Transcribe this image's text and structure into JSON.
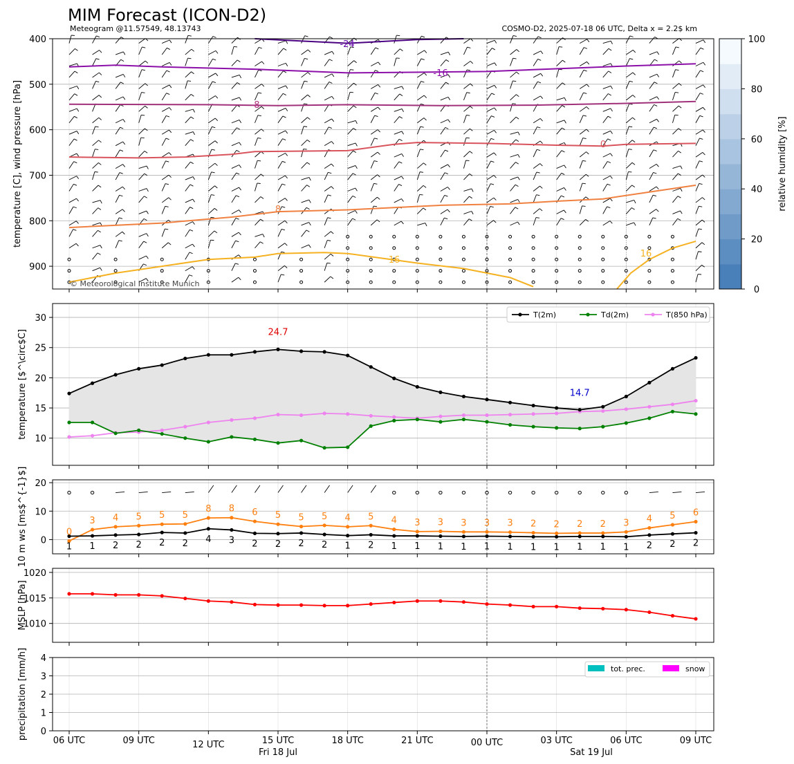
{
  "header": {
    "title": "MIM Forecast (ICON-D2)",
    "subtitle_left": "Meteogram @11.57549, 48.13743",
    "subtitle_right": "COSMO-D2, 2025-07-18 06 UTC, Delta x = 2.2$ km",
    "copyright": "© Meteorological Institute Munich"
  },
  "colors": {
    "t2m": "#000000",
    "td2m": "#008000",
    "t850": "#ee82ee",
    "gust": "#ff7f0e",
    "mslp": "#ff0000",
    "prec": "#00bfbf",
    "snow": "#ff00ff"
  },
  "chart_data": [
    {
      "type": "contour",
      "name": "upper-air",
      "ylabel": "temperature [C], wind pressure [hPa]",
      "ylim": [
        950,
        400
      ],
      "yticks": [
        400,
        500,
        600,
        700,
        800,
        900
      ],
      "colorbar": {
        "label": "relative humidity [%]",
        "range": [
          0,
          100
        ],
        "ticks": [
          0,
          20,
          40,
          60,
          80,
          100
        ]
      },
      "isotherm_labels": [
        "-24",
        "-16",
        "-8",
        "0",
        "8",
        "16",
        "16"
      ],
      "isotherms": [
        {
          "label": "-24",
          "color": "#4b0082",
          "points": [
            [
              8,
              400
            ],
            [
              12,
              410
            ],
            [
              15,
              402
            ],
            [
              17,
              400
            ]
          ]
        },
        {
          "label": "-16",
          "color": "#8b0fa8",
          "points": [
            [
              0,
              462
            ],
            [
              2,
              458
            ],
            [
              4,
              462
            ],
            [
              8,
              467
            ],
            [
              12,
              475
            ],
            [
              18,
              472
            ],
            [
              20,
              468
            ],
            [
              24,
              460
            ],
            [
              27,
              455
            ]
          ]
        },
        {
          "label": "-8",
          "color": "#a0307a",
          "points": [
            [
              0,
              544
            ],
            [
              6,
              545
            ],
            [
              9,
              547
            ],
            [
              12,
              545
            ],
            [
              16,
              547
            ],
            [
              20,
              546
            ],
            [
              24,
              542
            ],
            [
              27,
              538
            ]
          ]
        },
        {
          "label": "0",
          "color": "#d9535c",
          "points": [
            [
              0,
              660
            ],
            [
              3,
              662
            ],
            [
              5,
              660
            ],
            [
              7,
              654
            ],
            [
              8,
              648
            ],
            [
              12,
              646
            ],
            [
              14,
              632
            ],
            [
              15,
              628
            ],
            [
              18,
              630
            ],
            [
              21,
              634
            ],
            [
              23,
              636
            ],
            [
              24,
              632
            ],
            [
              27,
              630
            ]
          ]
        },
        {
          "label": "8",
          "color": "#f08040",
          "points": [
            [
              0,
              815
            ],
            [
              4,
              805
            ],
            [
              7,
              792
            ],
            [
              9,
              780
            ],
            [
              12,
              776
            ],
            [
              16,
              766
            ],
            [
              19,
              763
            ],
            [
              21,
              757
            ],
            [
              23,
              752
            ],
            [
              25,
              737
            ],
            [
              27,
              722
            ]
          ]
        },
        {
          "label": "16",
          "color": "#f5b120",
          "points": [
            [
              0,
              935
            ],
            [
              2,
              915
            ],
            [
              4,
              900
            ],
            [
              6,
              885
            ],
            [
              8,
              880
            ],
            [
              9,
              872
            ],
            [
              11,
              870
            ],
            [
              12,
              872
            ],
            [
              15,
              893
            ],
            [
              17,
              905
            ],
            [
              19,
              925
            ],
            [
              20,
              945
            ]
          ]
        },
        {
          "label": "16",
          "color": "#f5b120",
          "points": [
            [
              23.6,
              950
            ],
            [
              24.2,
              915
            ],
            [
              25,
              885
            ],
            [
              26,
              860
            ],
            [
              27,
              845
            ]
          ]
        }
      ]
    },
    {
      "type": "line",
      "name": "temperature",
      "ylabel": "temperature [$^\\circ$C]",
      "ylim": [
        5.5,
        32.3
      ],
      "yticks": [
        10,
        15,
        20,
        25,
        30
      ],
      "max_label": "24.7",
      "min_label": "14.7",
      "series": [
        {
          "name": "T(2m)",
          "values": [
            17.4,
            19.1,
            20.5,
            21.5,
            22.1,
            23.2,
            23.8,
            23.8,
            24.3,
            24.7,
            24.4,
            24.3,
            23.7,
            21.8,
            19.9,
            18.5,
            17.6,
            16.9,
            16.4,
            15.9,
            15.4,
            15.0,
            14.7,
            15.2,
            16.9,
            19.2,
            21.5,
            23.3
          ]
        },
        {
          "name": "Td(2m)",
          "values": [
            12.6,
            12.6,
            10.8,
            11.3,
            10.7,
            10.0,
            9.4,
            10.2,
            9.8,
            9.2,
            9.6,
            8.4,
            8.5,
            12.0,
            12.9,
            13.1,
            12.7,
            13.1,
            12.7,
            12.2,
            11.9,
            11.7,
            11.6,
            11.9,
            12.5,
            13.3,
            14.4,
            14.0
          ]
        },
        {
          "name": "T(850 hPa)",
          "values": [
            10.2,
            10.4,
            10.9,
            11.0,
            11.3,
            11.9,
            12.6,
            13.0,
            13.3,
            13.9,
            13.8,
            14.1,
            14.0,
            13.7,
            13.5,
            13.3,
            13.6,
            13.8,
            13.8,
            13.9,
            14.0,
            14.1,
            14.4,
            14.5,
            14.8,
            15.2,
            15.6,
            16.2
          ]
        }
      ]
    },
    {
      "type": "line",
      "name": "wind",
      "ylabel": "10 m ws [ms$^{-1}$]",
      "ylim": [
        -5,
        21
      ],
      "yticks": [
        0,
        10,
        20
      ],
      "series": [
        {
          "name": "ws",
          "values": [
            1.2,
            1.3,
            1.6,
            1.8,
            2.5,
            2.3,
            3.8,
            3.4,
            2.2,
            2.1,
            2.3,
            1.8,
            1.4,
            1.7,
            1.3,
            1.3,
            1.2,
            1.1,
            1.2,
            1.1,
            1.0,
            1.0,
            1.1,
            1.1,
            1.0,
            1.6,
            2.0,
            2.4
          ]
        },
        {
          "name": "gust",
          "values": [
            -0.5,
            3.5,
            4.5,
            4.9,
            5.4,
            5.5,
            7.6,
            7.7,
            6.4,
            5.4,
            4.6,
            5.0,
            4.5,
            4.9,
            3.6,
            2.8,
            2.9,
            2.7,
            2.7,
            2.6,
            2.4,
            2.2,
            2.3,
            2.3,
            2.7,
            4.1,
            5.2,
            6.3
          ]
        }
      ],
      "ws_labels": [
        "1",
        "1",
        "2",
        "2",
        "2",
        "2",
        "4",
        "3",
        "2",
        "2",
        "2",
        "2",
        "1",
        "2",
        "1",
        "1",
        "1",
        "1",
        "1",
        "1",
        "1",
        "1",
        "1",
        "1",
        "1",
        "2",
        "2",
        "2"
      ],
      "gust_labels": [
        "0",
        "3",
        "4",
        "5",
        "5",
        "5",
        "8",
        "8",
        "6",
        "5",
        "5",
        "5",
        "4",
        "5",
        "4",
        "3",
        "3",
        "3",
        "3",
        "3",
        "2",
        "2",
        "2",
        "2",
        "3",
        "4",
        "5",
        "6"
      ]
    },
    {
      "type": "line",
      "name": "pressure",
      "ylabel": "MSLP [hPa]",
      "ylim": [
        1006.3,
        1020.8
      ],
      "yticks": [
        1010,
        1015,
        1020
      ],
      "series": [
        {
          "name": "MSLP",
          "values": [
            1015.8,
            1015.8,
            1015.6,
            1015.6,
            1015.4,
            1014.9,
            1014.4,
            1014.2,
            1013.7,
            1013.6,
            1013.6,
            1013.5,
            1013.5,
            1013.8,
            1014.1,
            1014.4,
            1014.4,
            1014.2,
            1013.8,
            1013.6,
            1013.3,
            1013.3,
            1013.0,
            1012.9,
            1012.7,
            1012.2,
            1011.5,
            1010.9
          ]
        }
      ]
    },
    {
      "type": "bar",
      "name": "precipitation",
      "ylabel": "precipitation [mm/h]",
      "ylim": [
        0,
        4
      ],
      "yticks": [
        0,
        1,
        2,
        3,
        4
      ],
      "legend": [
        "tot. prec.",
        "snow"
      ],
      "series": [
        {
          "name": "tot. prec.",
          "values": [
            0,
            0,
            0,
            0,
            0,
            0,
            0,
            0,
            0,
            0,
            0,
            0,
            0,
            0,
            0,
            0,
            0,
            0,
            0,
            0,
            0,
            0,
            0,
            0,
            0,
            0,
            0,
            0
          ]
        },
        {
          "name": "snow",
          "values": [
            0,
            0,
            0,
            0,
            0,
            0,
            0,
            0,
            0,
            0,
            0,
            0,
            0,
            0,
            0,
            0,
            0,
            0,
            0,
            0,
            0,
            0,
            0,
            0,
            0,
            0,
            0,
            0
          ]
        }
      ]
    }
  ],
  "x_axis": {
    "tick_labels": [
      "06 UTC",
      "09 UTC",
      "12 UTC",
      "15 UTC",
      "18 UTC",
      "21 UTC",
      "00 UTC",
      "03 UTC",
      "06 UTC",
      "09 UTC"
    ],
    "tick_hours": [
      0,
      3,
      6,
      9,
      12,
      15,
      18,
      21,
      24,
      27
    ],
    "day_labels": [
      "Fri 18 Jul",
      "Sat 19 Jul"
    ]
  }
}
